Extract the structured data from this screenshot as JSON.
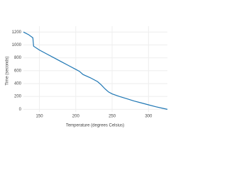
{
  "chart_data": {
    "type": "line",
    "x_label": "Temperature (degrees Celsius)",
    "y_label": "Time (seconds)",
    "x": [
      128,
      135,
      141,
      142,
      150,
      160,
      170,
      180,
      190,
      200,
      205,
      210,
      220,
      230,
      235,
      240,
      245,
      250,
      260,
      270,
      280,
      290,
      300,
      310,
      320,
      326
    ],
    "series": [
      {
        "name": "Time",
        "color": "#1f77b4",
        "values": [
          1200,
          1160,
          1110,
          980,
          920,
          860,
          800,
          740,
          680,
          620,
          590,
          540,
          490,
          430,
          380,
          320,
          270,
          240,
          200,
          165,
          130,
          100,
          70,
          40,
          15,
          0
        ]
      }
    ],
    "xlim": [
      128,
      326
    ],
    "xticks": [
      150,
      200,
      250,
      300
    ],
    "ylim": [
      -40,
      1290
    ],
    "yticks": [
      0,
      200,
      400,
      600,
      800,
      1000,
      1200
    ],
    "grid": true
  }
}
